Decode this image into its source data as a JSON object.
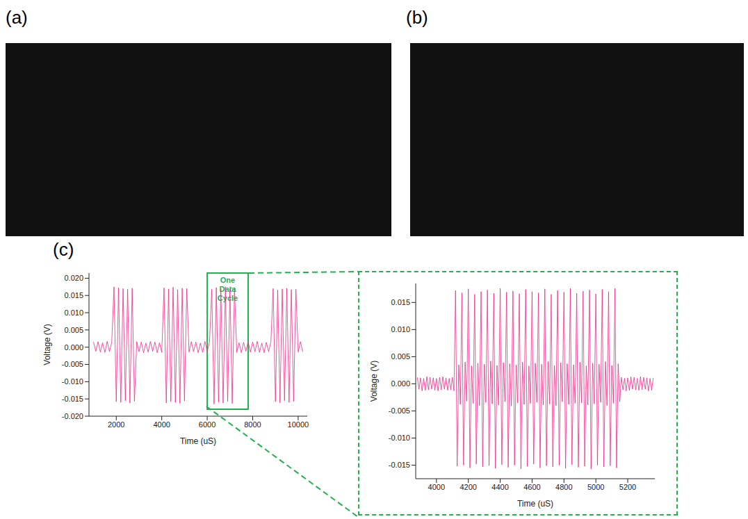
{
  "labels": [
    "(a)",
    "(b)",
    "(c)"
  ],
  "chart_data": [
    {
      "type": "line",
      "x_label": "Time (uS)",
      "y_label": "Voltage (V)",
      "color": "#ee2a8a",
      "grid": false,
      "xlim": [
        800,
        10400
      ],
      "xticks": [
        2000,
        4000,
        6000,
        8000,
        10000
      ],
      "ylim": [
        -0.02,
        0.0215
      ],
      "yticks": [
        {
          "value": -0.02,
          "label": "-0.020"
        },
        -0.015,
        {
          "value": -0.01,
          "label": "-0.010"
        },
        -0.005,
        {
          "value": 0,
          "label": "0.000"
        },
        0.005,
        {
          "value": 0.01,
          "label": "0.010"
        },
        0.015,
        {
          "value": 0.02,
          "label": "0.020"
        }
      ],
      "annotations": [
        {
          "text": "One Data Cycle",
          "x": [
            6000,
            7800
          ],
          "y": [
            -0.018,
            0.0215
          ],
          "color": "#22b14c"
        }
      ],
      "x": [
        1000,
        1100,
        1200,
        1300,
        1400,
        1500,
        1600,
        1700,
        1800,
        1900,
        2000,
        2100,
        2200,
        2300,
        2400,
        2500,
        2600,
        2700,
        2800,
        2900,
        3000,
        3100,
        3200,
        3300,
        3400,
        3500,
        3600,
        3700,
        3800,
        3900,
        4000,
        4100,
        4200,
        4300,
        4400,
        4500,
        4600,
        4700,
        4800,
        4900,
        5000,
        5100,
        5200,
        5300,
        5400,
        5500,
        5600,
        5700,
        5800,
        5900,
        6000,
        6100,
        6200,
        6300,
        6400,
        6500,
        6600,
        6700,
        6800,
        6900,
        7000,
        7100,
        7200,
        7300,
        7400,
        7500,
        7600,
        7700,
        7800,
        7900,
        8000,
        8100,
        8200,
        8300,
        8400,
        8500,
        8600,
        8700,
        8800,
        8900,
        9000,
        9100,
        9200,
        9300,
        9400,
        9500,
        9600,
        9700,
        9800,
        9900,
        10000,
        10100,
        10200
      ],
      "values": [
        0.0015,
        -0.0012,
        0.0016,
        -0.0014,
        0.0013,
        -0.0015,
        0.0017,
        -0.0013,
        0.0014,
        0.0175,
        -0.0158,
        0.0172,
        -0.016,
        0.017,
        -0.0155,
        0.0168,
        -0.0162,
        0.0171,
        -0.0157,
        0.0016,
        -0.0013,
        0.0015,
        -0.0016,
        0.0012,
        -0.0014,
        0.0017,
        -0.0012,
        0.0015,
        -0.0016,
        0.0013,
        -0.0015,
        0.0172,
        -0.0162,
        0.0169,
        -0.0158,
        0.0174,
        -0.016,
        0.0167,
        -0.0163,
        0.0171,
        -0.0156,
        0.017,
        -0.0014,
        0.0016,
        -0.0013,
        0.0015,
        -0.0016,
        0.0012,
        -0.0015,
        0.0017,
        -0.0013,
        0.0014,
        0.0168,
        -0.0165,
        0.0173,
        -0.0159,
        0.017,
        -0.0162,
        0.0175,
        -0.0157,
        0.0169,
        -0.0163,
        0.0172,
        -0.0015,
        0.0013,
        -0.0016,
        0.0014,
        -0.0012,
        0.0016,
        -0.0014,
        0.0015,
        -0.0013,
        0.0017,
        -0.0015,
        0.0012,
        -0.0016,
        0.0014,
        -0.0013,
        0.0015,
        0.017,
        -0.0158,
        0.0166,
        -0.0161,
        0.0169,
        -0.0155,
        0.0171,
        -0.016,
        0.0167,
        -0.0157,
        0.0168,
        -0.0014,
        0.0016,
        -0.0013
      ]
    },
    {
      "type": "line",
      "x_label": "Time (uS)",
      "y_label": "Voltage (V)",
      "color": "#ee2a8a",
      "grid": false,
      "xlim": [
        3870,
        5370
      ],
      "xticks": [
        4000,
        4200,
        4400,
        4600,
        4800,
        5000,
        5200
      ],
      "ylim": [
        -0.0175,
        0.0185
      ],
      "yticks": [
        -0.015,
        {
          "value": -0.01,
          "label": "-0.010"
        },
        -0.005,
        {
          "value": 0,
          "label": "0.000"
        },
        0.005,
        {
          "value": 0.01,
          "label": "0.010"
        },
        0.015
      ],
      "x": [
        3880,
        3890,
        3900,
        3910,
        3920,
        3930,
        3940,
        3950,
        3960,
        3970,
        3980,
        3990,
        4000,
        4010,
        4020,
        4030,
        4040,
        4050,
        4060,
        4070,
        4080,
        4090,
        4100,
        4110,
        4120,
        4130,
        4140,
        4150,
        4160,
        4170,
        4180,
        4190,
        4200,
        4210,
        4220,
        4230,
        4240,
        4250,
        4260,
        4270,
        4280,
        4290,
        4300,
        4310,
        4320,
        4330,
        4340,
        4350,
        4360,
        4370,
        4380,
        4390,
        4400,
        4410,
        4420,
        4430,
        4440,
        4450,
        4460,
        4470,
        4480,
        4490,
        4500,
        4510,
        4520,
        4530,
        4540,
        4550,
        4560,
        4570,
        4580,
        4590,
        4600,
        4610,
        4620,
        4630,
        4640,
        4650,
        4660,
        4670,
        4680,
        4690,
        4700,
        4710,
        4720,
        4730,
        4740,
        4750,
        4760,
        4770,
        4780,
        4790,
        4800,
        4810,
        4820,
        4830,
        4840,
        4850,
        4860,
        4870,
        4880,
        4890,
        4900,
        4910,
        4920,
        4930,
        4940,
        4950,
        4960,
        4970,
        4980,
        4990,
        5000,
        5010,
        5020,
        5030,
        5040,
        5050,
        5060,
        5070,
        5080,
        5090,
        5100,
        5110,
        5120,
        5130,
        5140,
        5150,
        5160,
        5170,
        5180,
        5190,
        5200,
        5210,
        5220,
        5230,
        5240,
        5250,
        5260,
        5270,
        5280,
        5290,
        5300,
        5310,
        5320,
        5330,
        5340,
        5350,
        5360
      ],
      "values": [
        0.0012,
        -0.001,
        0.0011,
        -0.0013,
        0.001,
        -0.0012,
        0.0013,
        -0.0011,
        0.0012,
        -0.001,
        0.0011,
        -0.0012,
        0.001,
        -0.0013,
        0.0012,
        -0.0011,
        0.0013,
        -0.001,
        0.0011,
        -0.0012,
        0.001,
        -0.0011,
        0.0012,
        -0.0013,
        0.0172,
        -0.0152,
        0.0035,
        -0.0038,
        0.0168,
        -0.015,
        0.004,
        -0.0032,
        0.0175,
        -0.0155,
        0.0033,
        -0.0036,
        0.0165,
        -0.0148,
        0.0038,
        -0.004,
        0.017,
        -0.0153,
        0.0036,
        -0.0034,
        0.0173,
        -0.0151,
        0.0042,
        -0.0037,
        0.0167,
        -0.0156,
        0.0034,
        -0.0039,
        0.0176,
        -0.0149,
        0.0039,
        -0.0033,
        0.0169,
        -0.0154,
        0.0037,
        -0.0041,
        0.0171,
        -0.015,
        0.0035,
        -0.0035,
        0.0166,
        -0.0157,
        0.004,
        -0.0038,
        0.0174,
        -0.0152,
        0.0033,
        -0.0036,
        0.017,
        -0.0148,
        0.0038,
        -0.0034,
        0.0168,
        -0.0155,
        0.0036,
        -0.0039,
        0.0175,
        -0.0151,
        0.0041,
        -0.0037,
        0.0165,
        -0.0153,
        0.0034,
        -0.004,
        0.0172,
        -0.015,
        0.0039,
        -0.0033,
        0.0169,
        -0.0156,
        0.0037,
        -0.0038,
        0.0176,
        -0.0149,
        0.0035,
        -0.0036,
        0.0167,
        -0.0154,
        0.004,
        -0.0035,
        0.0171,
        -0.0152,
        0.0033,
        -0.0039,
        0.0173,
        -0.0157,
        0.0038,
        -0.0037,
        0.0166,
        -0.015,
        0.0036,
        -0.0034,
        0.0174,
        -0.0153,
        0.0041,
        -0.004,
        0.017,
        -0.0151,
        0.0034,
        -0.0036,
        0.0176,
        -0.0155,
        0.0037,
        -0.0033,
        0.0012,
        -0.0011,
        0.001,
        -0.0013,
        0.0011,
        -0.0012,
        0.0013,
        -0.001,
        0.0012,
        -0.0011,
        0.001,
        -0.0012,
        0.0013,
        -0.0011,
        0.0012,
        -0.001,
        0.0011,
        -0.0013,
        0.001,
        -0.0012,
        0.0011
      ]
    }
  ]
}
